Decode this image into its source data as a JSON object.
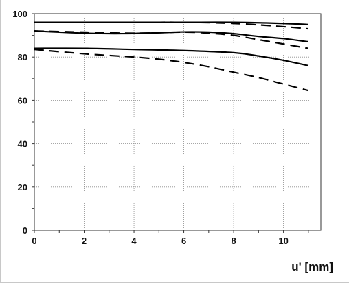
{
  "chart_data": {
    "type": "line",
    "title": "",
    "xlabel": "u' [mm]",
    "ylabel": "",
    "xlim": [
      0,
      11.5
    ],
    "ylim": [
      0,
      100
    ],
    "x_ticks": [
      0,
      2,
      4,
      6,
      8,
      10
    ],
    "y_ticks": [
      0,
      20,
      40,
      60,
      80,
      100
    ],
    "x_minor_step": 1,
    "y_minor_step": 10,
    "grid": "dotted at major ticks",
    "legend": "none",
    "line_color": "#000000",
    "series": [
      {
        "style": "solid",
        "x": [
          0,
          2,
          4,
          6,
          8,
          10,
          11
        ],
        "y": [
          96,
          96,
          96,
          96,
          96,
          95.5,
          95
        ]
      },
      {
        "style": "dashed",
        "x": [
          0,
          2,
          4,
          6,
          8,
          10,
          11
        ],
        "y": [
          96,
          96,
          96,
          96,
          95.5,
          94,
          93
        ]
      },
      {
        "style": "solid",
        "x": [
          0,
          2,
          3.5,
          5,
          6,
          7,
          8,
          9,
          10,
          11
        ],
        "y": [
          92,
          91,
          90.8,
          91.2,
          91.6,
          91.5,
          90.8,
          89.5,
          88.5,
          87
        ]
      },
      {
        "style": "dashed",
        "x": [
          0,
          2,
          4,
          6,
          7,
          8,
          9,
          10,
          11
        ],
        "y": [
          92,
          91.5,
          91,
          91.5,
          91,
          90,
          88,
          86,
          84
        ]
      },
      {
        "style": "solid",
        "x": [
          0,
          2,
          4,
          6,
          8,
          9,
          10,
          11
        ],
        "y": [
          84,
          84,
          83.5,
          83,
          82,
          80.5,
          78.5,
          76
        ]
      },
      {
        "style": "dashed",
        "x": [
          0,
          2,
          4,
          5,
          6,
          7,
          8,
          9,
          10,
          11
        ],
        "y": [
          83.5,
          81.5,
          80,
          79,
          77.5,
          75.5,
          73,
          70.5,
          67.5,
          64.5
        ]
      }
    ]
  }
}
